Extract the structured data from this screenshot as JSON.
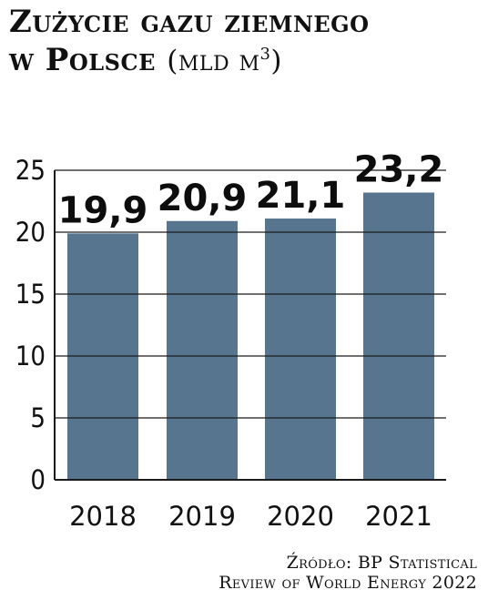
{
  "title": {
    "line1": "Zużycie gazu ziemnego",
    "line2": "w Polsce",
    "unit": "(mld m",
    "unit_sup": "3",
    "unit_close": ")"
  },
  "chart_data": {
    "type": "bar",
    "categories": [
      "2018",
      "2019",
      "2020",
      "2021"
    ],
    "values": [
      19.9,
      20.9,
      21.1,
      23.2
    ],
    "value_labels": [
      "19,9",
      "20,9",
      "21,1",
      "23,2"
    ],
    "yticks": [
      "0",
      "5",
      "10",
      "15",
      "20",
      "25"
    ],
    "ytick_values": [
      0,
      5,
      10,
      15,
      20,
      25
    ],
    "ylim": [
      0,
      25
    ],
    "grid": true,
    "bar_color": "#57758f",
    "xlabel": "",
    "ylabel": ""
  },
  "source": {
    "line1": "Źródło: BP Statistical",
    "line2": "Review of World Energy 2022"
  }
}
